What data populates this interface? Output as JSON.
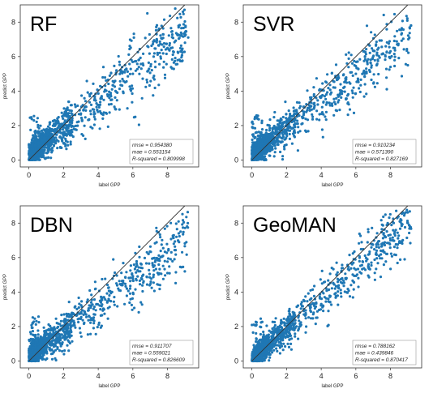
{
  "colors": {
    "points": "#1f77b4",
    "diagonal": "#333333",
    "frame": "#333333",
    "background": "#ffffff"
  },
  "chart_data": [
    {
      "type": "scatter",
      "title": "RF",
      "xlabel": "label GPP",
      "ylabel": "predict GPP",
      "xlim": [
        -0.5,
        9.8
      ],
      "ylim": [
        -0.4,
        9.0
      ],
      "xticks": [
        "0",
        "2",
        "4",
        "6",
        "8"
      ],
      "yticks": [
        "0",
        "2",
        "4",
        "6",
        "8"
      ],
      "diagonal": [
        0,
        9
      ],
      "metrics": [
        "rmse = 0.954380",
        "mae = 0.553154",
        "R-squared = 0.809998"
      ],
      "fit": {
        "slope": 0.8,
        "intercept": 0.25,
        "noise": 0.95
      },
      "x": [
        0.1,
        0.3,
        0.6,
        0.9,
        1.2,
        1.5,
        2.0,
        2.5,
        3.0,
        3.6,
        4.2,
        4.8,
        5.4,
        6.0,
        6.6,
        7.2,
        8.0,
        9.0
      ],
      "y": [
        0.2,
        0.5,
        0.8,
        1.0,
        1.4,
        1.6,
        1.9,
        2.3,
        2.7,
        3.2,
        3.7,
        4.1,
        4.7,
        5.0,
        5.5,
        6.0,
        6.5,
        7.2
      ]
    },
    {
      "type": "scatter",
      "title": "SVR",
      "xlabel": "label GPP",
      "ylabel": "predict GPP",
      "xlim": [
        -0.5,
        9.8
      ],
      "ylim": [
        -0.4,
        9.0
      ],
      "xticks": [
        "0",
        "2",
        "4",
        "6",
        "8"
      ],
      "yticks": [
        "0",
        "2",
        "4",
        "6",
        "8"
      ],
      "diagonal": [
        0,
        9
      ],
      "metrics": [
        "rmse = 0.910234",
        "mae = 0.571390",
        "R-squared = 0.827169"
      ],
      "fit": {
        "slope": 0.78,
        "intercept": 0.3,
        "noise": 0.85
      },
      "x": [
        0.1,
        0.3,
        0.6,
        0.9,
        1.2,
        1.5,
        2.0,
        2.5,
        3.0,
        3.6,
        4.2,
        4.8,
        5.4,
        6.0,
        6.6,
        7.2,
        8.0,
        9.0
      ],
      "y": [
        0.3,
        0.5,
        0.7,
        1.0,
        1.3,
        1.6,
        2.0,
        2.4,
        2.8,
        3.3,
        3.7,
        4.2,
        4.6,
        5.0,
        5.3,
        5.5,
        5.4,
        5.5
      ]
    },
    {
      "type": "scatter",
      "title": "DBN",
      "xlabel": "label GPP",
      "ylabel": "predict GPP",
      "xlim": [
        -0.5,
        9.8
      ],
      "ylim": [
        -0.4,
        9.0
      ],
      "xticks": [
        "0",
        "2",
        "4",
        "6",
        "8"
      ],
      "yticks": [
        "0",
        "2",
        "4",
        "6",
        "8"
      ],
      "diagonal": [
        0,
        9
      ],
      "metrics": [
        "rmse = 0.911707",
        "mae = 0.559021",
        "R-squared = 0.826609"
      ],
      "fit": {
        "slope": 0.75,
        "intercept": 0.3,
        "noise": 0.85
      },
      "x": [
        0.1,
        0.3,
        0.6,
        0.9,
        1.2,
        1.5,
        2.0,
        2.5,
        3.0,
        3.6,
        4.2,
        4.8,
        5.4,
        6.0,
        6.6,
        7.2,
        8.0,
        9.0
      ],
      "y": [
        0.3,
        0.5,
        0.7,
        1.0,
        1.3,
        1.5,
        2.0,
        2.3,
        2.8,
        3.2,
        3.6,
        4.0,
        4.4,
        4.8,
        5.0,
        5.0,
        5.1,
        5.2
      ]
    },
    {
      "type": "scatter",
      "title": "GeoMAN",
      "xlabel": "label GPP",
      "ylabel": "predict GPP",
      "xlim": [
        -0.5,
        9.8
      ],
      "ylim": [
        -0.4,
        9.0
      ],
      "xticks": [
        "0",
        "2",
        "4",
        "6",
        "8"
      ],
      "yticks": [
        "0",
        "2",
        "4",
        "6",
        "8"
      ],
      "diagonal": [
        0,
        9
      ],
      "metrics": [
        "rmse = 0.788162",
        "mae = 0.439846",
        "R-squared = 0.870417"
      ],
      "fit": {
        "slope": 0.88,
        "intercept": 0.1,
        "noise": 0.75
      },
      "x": [
        0.1,
        0.3,
        0.6,
        0.9,
        1.2,
        1.5,
        2.0,
        2.5,
        3.0,
        3.6,
        4.2,
        4.8,
        5.4,
        6.0,
        6.6,
        7.2,
        8.0,
        9.0
      ],
      "y": [
        0.1,
        0.3,
        0.6,
        0.9,
        1.1,
        1.4,
        1.8,
        2.2,
        2.7,
        3.2,
        3.7,
        4.2,
        4.8,
        5.3,
        5.8,
        6.4,
        7.0,
        8.0
      ]
    }
  ]
}
